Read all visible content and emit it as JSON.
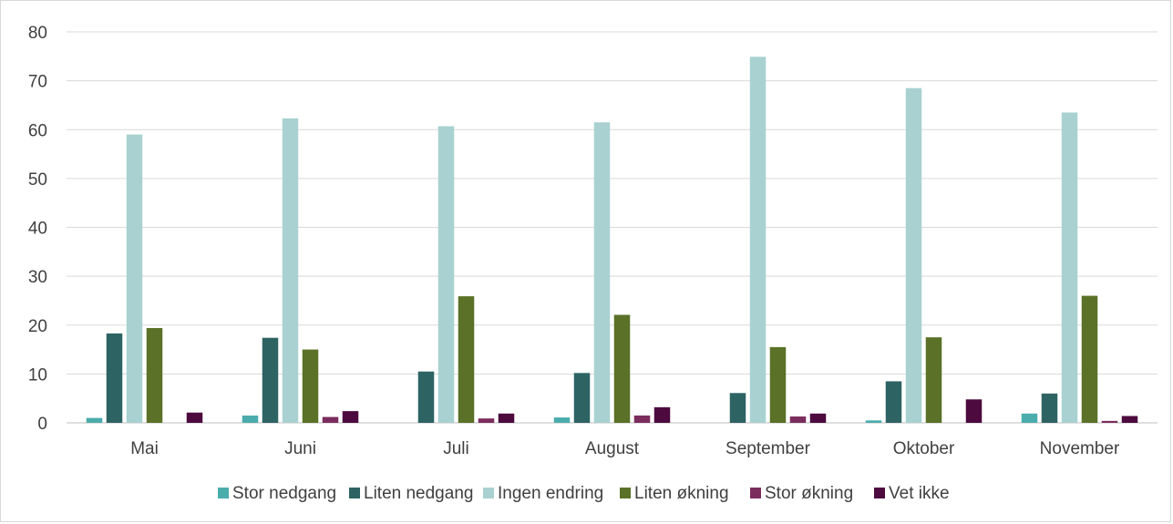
{
  "chart_data": {
    "type": "bar",
    "categories": [
      "Mai",
      "Juni",
      "Juli",
      "August",
      "September",
      "Oktober",
      "November"
    ],
    "series": [
      {
        "name": "Stor nedgang",
        "color": "#4bacac",
        "values": [
          1.0,
          1.5,
          0,
          1.1,
          0,
          0.5,
          1.9
        ]
      },
      {
        "name": "Liten nedgang",
        "color": "#2e6364",
        "values": [
          18.3,
          17.4,
          10.5,
          10.2,
          6.1,
          8.5,
          6.0
        ]
      },
      {
        "name": "Ingen endring",
        "color": "#a9d1d1",
        "values": [
          59.0,
          62.3,
          60.7,
          61.5,
          74.9,
          68.5,
          63.5
        ]
      },
      {
        "name": "Liten økning",
        "color": "#5a7127",
        "values": [
          19.4,
          15.0,
          25.9,
          22.1,
          15.5,
          17.5,
          26.0
        ]
      },
      {
        "name": "Stor økning",
        "color": "#7b2d5e",
        "values": [
          0,
          1.2,
          0.9,
          1.5,
          1.3,
          0,
          0.4
        ]
      },
      {
        "name": "Vet ikke",
        "color": "#4d0a3e",
        "values": [
          2.1,
          2.4,
          1.9,
          3.2,
          1.9,
          4.8,
          1.4
        ]
      }
    ],
    "y_ticks": [
      "0",
      "10",
      "20",
      "30",
      "40",
      "50",
      "60",
      "70",
      "80"
    ],
    "ylim": [
      0,
      80
    ],
    "grid": true,
    "legend": "bottom"
  }
}
